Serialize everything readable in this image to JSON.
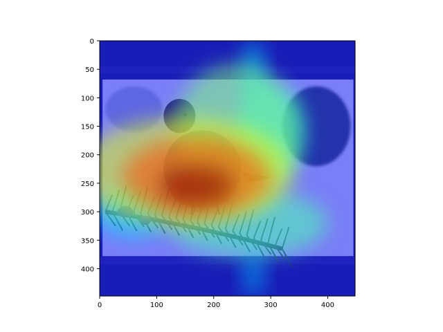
{
  "chart_data": {
    "type": "heatmap",
    "title": "",
    "xlabel": "",
    "ylabel": "",
    "image_size": [
      448,
      448
    ],
    "xlim": [
      0,
      448
    ],
    "ylim": [
      448,
      0
    ],
    "x_ticks": [
      0,
      100,
      200,
      300,
      400
    ],
    "y_ticks": [
      0,
      50,
      100,
      150,
      200,
      250,
      300,
      350,
      400
    ],
    "x_tick_labels": [
      "0",
      "100",
      "200",
      "300",
      "400"
    ],
    "y_tick_labels": [
      "0",
      "50",
      "100",
      "150",
      "200",
      "250",
      "300",
      "350",
      "400"
    ],
    "grid": false,
    "colormap": "jet",
    "subject": "bird on a pine branch (background photo overlaid by activation heatmap)",
    "heat_regions": [
      {
        "x": 170,
        "y": 255,
        "rx": 65,
        "ry": 35,
        "intensity": 1.0
      },
      {
        "x": 170,
        "y": 240,
        "rx": 130,
        "ry": 70,
        "intensity": 0.8
      },
      {
        "x": 150,
        "y": 230,
        "rx": 190,
        "ry": 95,
        "intensity": 0.6
      },
      {
        "x": 240,
        "y": 160,
        "rx": 110,
        "ry": 120,
        "intensity": 0.5
      },
      {
        "x": 300,
        "y": 160,
        "rx": 60,
        "ry": 80,
        "intensity": 0.4
      },
      {
        "x": 260,
        "y": 320,
        "rx": 140,
        "ry": 60,
        "intensity": 0.45
      },
      {
        "x": 60,
        "y": 300,
        "rx": 70,
        "ry": 45,
        "intensity": 0.35
      },
      {
        "x": 270,
        "y": 60,
        "rx": 20,
        "ry": 60,
        "intensity": 0.35
      },
      {
        "x": 270,
        "y": 410,
        "rx": 20,
        "ry": 40,
        "intensity": 0.3
      }
    ],
    "colors": {
      "background": "#2f3580",
      "border_band": "#3a3f8c",
      "photo_sky": "#dfe6f4",
      "bird_body": "#5a7a8c",
      "bird_breast": "#c8603a",
      "bird_head": "#3a3440",
      "branch": "#2d4a34"
    }
  }
}
